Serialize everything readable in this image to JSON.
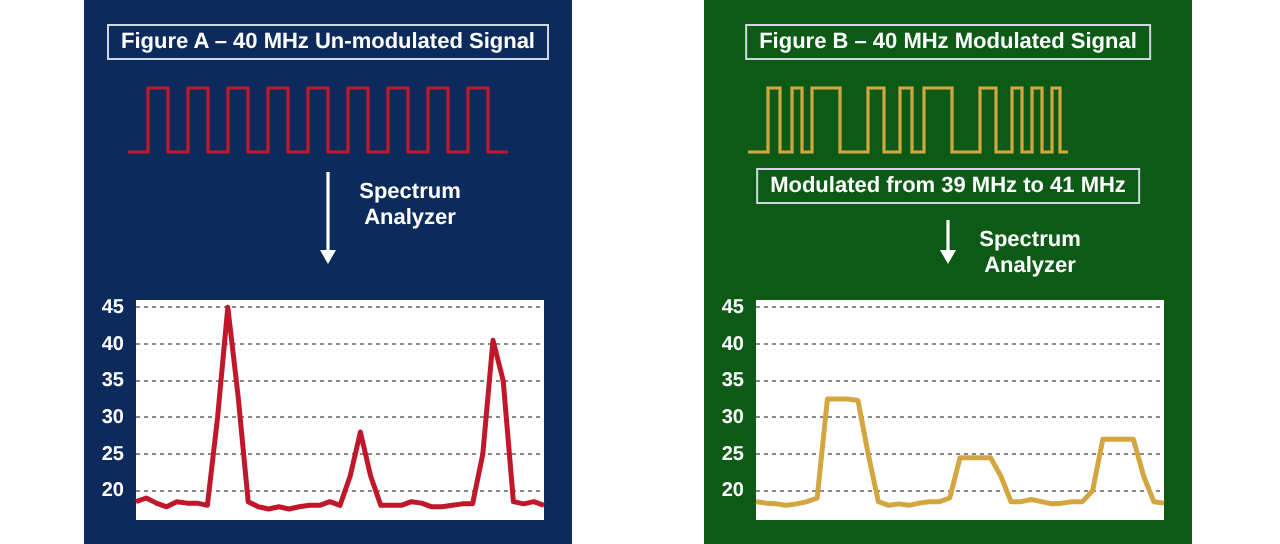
{
  "chart_data": [
    {
      "type": "line",
      "title": "Figure A – 40 MHz Un-modulated Signal",
      "annotations": [
        "Spectrum Analyzer"
      ],
      "categories": [
        null,
        null,
        null,
        null,
        null,
        null,
        null,
        null,
        null,
        null,
        null,
        null,
        null,
        null,
        null,
        null,
        null,
        null,
        null,
        null,
        null,
        null,
        null,
        null,
        null,
        null,
        null,
        null,
        null,
        null,
        null,
        null,
        null,
        null,
        null,
        null,
        null,
        null,
        null,
        null,
        null
      ],
      "series": [
        {
          "color": "#c0182a",
          "values": [
            18.5,
            19,
            18.3,
            17.8,
            18.5,
            18.3,
            18.3,
            18,
            30,
            45,
            33,
            18.5,
            17.8,
            17.5,
            17.8,
            17.5,
            17.8,
            18,
            18,
            18.5,
            18,
            22,
            28,
            22,
            18,
            18,
            18,
            18.5,
            18.3,
            17.8,
            17.8,
            18,
            18.2,
            18.2,
            25,
            40.5,
            35,
            18.5,
            18.2,
            18.5,
            18
          ]
        }
      ],
      "ylim": [
        16,
        46
      ],
      "yticks": [
        20,
        25,
        30,
        35,
        40,
        45
      ],
      "grid": "y",
      "tick_labels": "y",
      "legend": false,
      "marker": "none",
      "line_style": "solid"
    },
    {
      "type": "line",
      "title": "Figure B – 40 MHz Modulated Signal",
      "annotations": [
        "Modulated from 39 MHz to 41 MHz",
        "Spectrum Analyzer"
      ],
      "categories": [
        null,
        null,
        null,
        null,
        null,
        null,
        null,
        null,
        null,
        null,
        null,
        null,
        null,
        null,
        null,
        null,
        null,
        null,
        null,
        null,
        null,
        null,
        null,
        null,
        null,
        null,
        null,
        null,
        null,
        null,
        null,
        null,
        null,
        null,
        null,
        null,
        null,
        null,
        null,
        null,
        null
      ],
      "series": [
        {
          "color": "#d4a640",
          "values": [
            18.5,
            18.3,
            18.2,
            18,
            18.2,
            18.5,
            19,
            32.5,
            32.5,
            32.5,
            32.3,
            25,
            18.5,
            18,
            18.2,
            18,
            18.3,
            18.5,
            18.5,
            19,
            24.5,
            24.5,
            24.5,
            24.5,
            22,
            18.5,
            18.5,
            18.8,
            18.5,
            18.2,
            18.3,
            18.5,
            18.5,
            20,
            27,
            27,
            27,
            27,
            22,
            18.5,
            18.3
          ]
        }
      ],
      "ylim": [
        16,
        46
      ],
      "yticks": [
        20,
        25,
        30,
        35,
        40,
        45
      ],
      "grid": "y",
      "tick_labels": "y",
      "legend": false,
      "marker": "none",
      "line_style": "solid"
    }
  ]
}
